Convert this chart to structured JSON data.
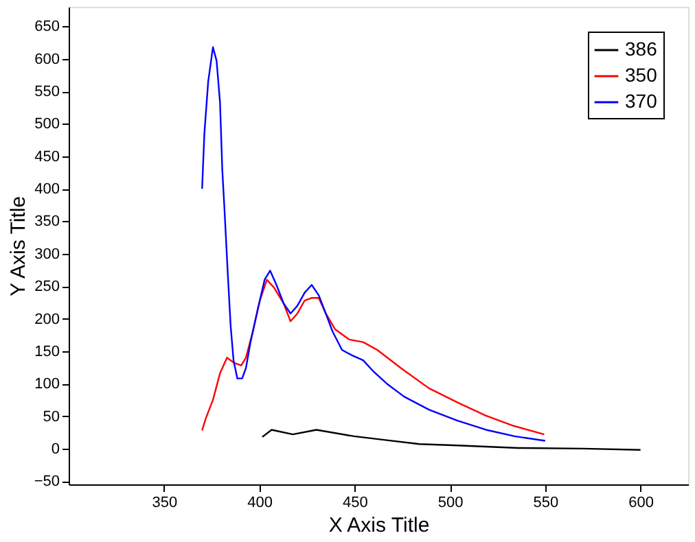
{
  "chart_data": {
    "type": "line",
    "xlabel": "X Axis Title",
    "ylabel": "Y Axis Title",
    "xlim": [
      300,
      625
    ],
    "xticks": [
      350,
      400,
      450,
      500,
      550,
      600
    ],
    "ylim": [
      -55,
      680
    ],
    "yticks": [
      -50,
      0,
      50,
      100,
      150,
      200,
      250,
      300,
      350,
      400,
      450,
      500,
      550,
      600,
      650
    ],
    "grid": false,
    "legend": "top right",
    "line_style": "solid",
    "marker": "none",
    "series": [
      {
        "name": "386",
        "color": "#000000",
        "x": [
          401.6,
          406.5,
          417.6,
          430,
          449.7,
          467,
          484,
          504,
          536,
          570,
          600
        ],
        "values": [
          18,
          29,
          22,
          29,
          19,
          13,
          7,
          5,
          1,
          0,
          -2
        ]
      },
      {
        "name": "350",
        "color": "#ff0000",
        "x": [
          370,
          372,
          375.7,
          379.4,
          383.1,
          386.8,
          390.5,
          393,
          396.6,
          400.3,
          404,
          407.7,
          412.7,
          416.4,
          420,
          423.8,
          427.5,
          431.2,
          434.9,
          439.7,
          447.1,
          454.5,
          461.9,
          474.3,
          489,
          504,
          518.7,
          533.5,
          549.5
        ],
        "values": [
          28,
          47,
          75,
          116,
          140,
          132,
          128,
          140,
          180,
          228,
          260,
          248,
          224,
          196,
          208,
          228,
          232,
          232,
          208,
          184,
          168,
          164,
          152,
          124,
          93,
          71,
          51,
          35,
          22
        ]
      },
      {
        "name": "370",
        "color": "#0000ff",
        "x": [
          370,
          371.2,
          373.2,
          375.7,
          377.6,
          379.4,
          380.6,
          381.8,
          383.5,
          385,
          386.5,
          388.5,
          391,
          393,
          395.4,
          399,
          402.8,
          405.7,
          409,
          412.7,
          416.4,
          420,
          423.8,
          427.5,
          431.2,
          434.9,
          438.5,
          443.4,
          448.4,
          454.5,
          459.5,
          466.9,
          476,
          489,
          504,
          519,
          534,
          550
        ],
        "values": [
          400,
          485,
          565,
          618,
          597,
          533,
          429,
          365,
          268,
          188,
          136,
          108,
          108,
          124,
          164,
          212,
          260,
          274,
          252,
          224,
          208,
          220,
          240,
          252,
          236,
          208,
          180,
          152,
          144,
          136,
          120,
          100,
          80,
          60,
          43,
          29,
          19,
          12
        ]
      }
    ]
  }
}
